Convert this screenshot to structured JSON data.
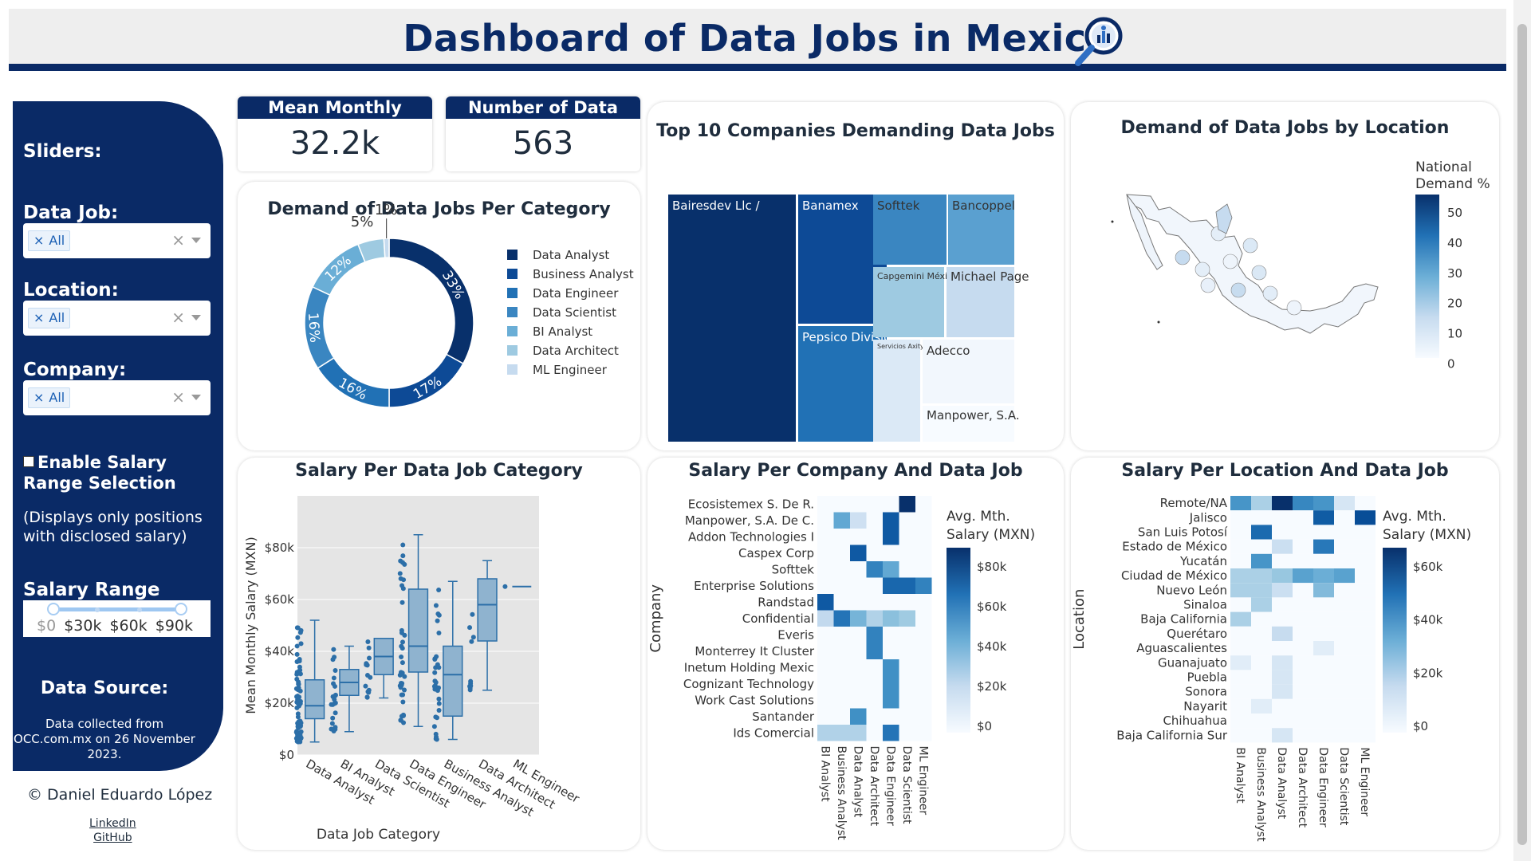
{
  "header": {
    "title": "Dashboard of Data Jobs in Mexico"
  },
  "sidebar": {
    "heading": "Sliders:",
    "filters": [
      {
        "label": "Data Job:",
        "value": "All"
      },
      {
        "label": "Location:",
        "value": "All"
      },
      {
        "label": "Company:",
        "value": "All"
      }
    ],
    "salary_checkbox": {
      "label": "Enable Salary Range Selection",
      "checked": false
    },
    "salary_note": "(Displays only positions with disclosed salary)",
    "salary_range": {
      "label": "Salary Range (MXN):",
      "marks": [
        "$0",
        "$30k",
        "$60k",
        "$90k"
      ]
    },
    "data_source": {
      "heading": "Data Source:",
      "text": "Data collected from OCC.com.mx on 26 November 2023."
    },
    "credit": "© Daniel Eduardo López",
    "links": [
      "LinkedIn",
      "GitHub"
    ]
  },
  "kpis": [
    {
      "label": "Mean Monthly Salary",
      "value": "32.2k"
    },
    {
      "label": "Number of Data Jobs",
      "value": "563"
    }
  ],
  "colors": {
    "brand": "#0a2a66",
    "header_bg": "#eeeeee"
  },
  "chart_data": [
    {
      "type": "pie",
      "title": "Demand of Data Jobs Per Category",
      "hole": true,
      "categories": [
        "Data Analyst",
        "Business Analyst",
        "Data Engineer",
        "Data Scientist",
        "BI Analyst",
        "Data Architect",
        "ML Engineer"
      ],
      "values": [
        33,
        17,
        16,
        16,
        12,
        5,
        1
      ],
      "labels": [
        "33%",
        "17%",
        "16%",
        "16%",
        "12%",
        "5%",
        "1%"
      ],
      "colors": [
        "#08306b",
        "#0d4a96",
        "#2171b5",
        "#3a86c1",
        "#6aaed6",
        "#9ecae1",
        "#c6dbef"
      ],
      "legend": "right"
    },
    {
      "type": "treemap",
      "title": "Top 10 Companies Demanding Data Jobs",
      "items": [
        {
          "label": "Bairesdev Llc /",
          "color": "#08306b"
        },
        {
          "label": "Banamex",
          "color": "#0d4a96"
        },
        {
          "label": "Pepsico Divisió",
          "color": "#2171b5"
        },
        {
          "label": "Softtek",
          "color": "#3a86c1"
        },
        {
          "label": "Bancoppel",
          "color": "#5aa0d0"
        },
        {
          "label": "Capgemini Méxi",
          "color": "#9ecae1"
        },
        {
          "label": "Michael Page",
          "color": "#c6dbef"
        },
        {
          "label": "Servicios Axity",
          "color": "#dbe9f6"
        },
        {
          "label": "Adecco",
          "color": "#f2f7fd"
        },
        {
          "label": "Manpower, S.A.",
          "color": "#f7fbff"
        }
      ]
    },
    {
      "type": "choropleth",
      "title": "Demand of Data Jobs by Location",
      "colorbar": {
        "title": [
          "National",
          "Demand %"
        ],
        "ticks": [
          "50",
          "40",
          "30",
          "20",
          "10",
          "0"
        ]
      }
    },
    {
      "type": "box",
      "title": "Salary Per Data Job Category",
      "xlabel": "Data Job Category",
      "ylabel": "Mean Monthly Salary (MXN)",
      "yticks": [
        "$0",
        "$20k",
        "$40k",
        "$60k",
        "$80k"
      ],
      "ylim": [
        0,
        100000
      ],
      "categories": [
        "Data Analyst",
        "BI Analyst",
        "Data Scientist",
        "Data Engineer",
        "Business Analyst",
        "Data Architect",
        "ML Engineer"
      ],
      "boxes": [
        {
          "min": 5000,
          "q1": 14000,
          "median": 19000,
          "q3": 29000,
          "max": 52000
        },
        {
          "min": 9000,
          "q1": 23000,
          "median": 28000,
          "q3": 33000,
          "max": 42000
        },
        {
          "min": 22000,
          "q1": 31000,
          "median": 38000,
          "q3": 45000,
          "max": 45000
        },
        {
          "min": 11000,
          "q1": 32000,
          "median": 42000,
          "q3": 64000,
          "max": 85000
        },
        {
          "min": 6000,
          "q1": 15000,
          "median": 31000,
          "q3": 42000,
          "max": 67000
        },
        {
          "min": 25000,
          "q1": 44000,
          "median": 58000,
          "q3": 68000,
          "max": 75000
        },
        {
          "min": 65000,
          "q1": 65000,
          "median": 65000,
          "q3": 65000,
          "max": 65000
        }
      ]
    },
    {
      "type": "heatmap",
      "title": "Salary Per Company And Data Job",
      "ylabel": "Company",
      "colorbar": {
        "title": [
          "Avg. Mth.",
          "Salary (MXN)"
        ],
        "ticks": [
          "$80k",
          "$60k",
          "$40k",
          "$20k",
          "$0"
        ]
      },
      "x": [
        "BI Analyst",
        "Business Analyst",
        "Data Analyst",
        "Data Architect",
        "Data Engineer",
        "Data Scientist",
        "ML Engineer"
      ],
      "y": [
        "Ecosistemex S. De R.",
        "Manpower, S.A. De C.",
        "Addon Technologies I",
        "Caspex Corp",
        "Softtek",
        "Enterprise Solutions",
        "Randstad",
        "Confidential",
        "Everis",
        "Monterrey It Cluster",
        "Inetum Holding Mexic",
        "Cognizant Technology",
        "Work Cast Solutions",
        "Santander",
        "Ids Comercial"
      ],
      "z": [
        [
          null,
          null,
          null,
          null,
          null,
          95,
          null
        ],
        [
          null,
          50,
          20,
          null,
          80,
          null,
          null
        ],
        [
          null,
          null,
          null,
          null,
          80,
          null,
          null
        ],
        [
          null,
          null,
          80,
          null,
          null,
          null,
          null
        ],
        [
          null,
          null,
          null,
          65,
          50,
          null,
          null
        ],
        [
          null,
          null,
          null,
          null,
          75,
          75,
          65
        ],
        [
          80,
          null,
          null,
          null,
          null,
          null,
          null
        ],
        [
          25,
          70,
          45,
          30,
          40,
          35,
          null
        ],
        [
          null,
          null,
          null,
          65,
          null,
          null,
          null
        ],
        [
          null,
          null,
          null,
          65,
          null,
          null,
          null
        ],
        [
          null,
          null,
          null,
          null,
          60,
          null,
          null
        ],
        [
          null,
          null,
          null,
          null,
          60,
          null,
          null
        ],
        [
          null,
          null,
          null,
          null,
          60,
          null,
          null
        ],
        [
          null,
          null,
          60,
          null,
          null,
          null,
          null
        ],
        [
          30,
          30,
          30,
          null,
          70,
          null,
          null
        ]
      ]
    },
    {
      "type": "heatmap",
      "title": "Salary Per Location And Data Job",
      "ylabel": "Location",
      "colorbar": {
        "title": [
          "Avg. Mth.",
          "Salary (MXN)"
        ],
        "ticks": [
          "$60k",
          "$40k",
          "$20k",
          "$0"
        ]
      },
      "x": [
        "BI Analyst",
        "Business Analyst",
        "Data Analyst",
        "Data Architect",
        "Data Engineer",
        "Data Scientist",
        "ML Engineer"
      ],
      "y": [
        "Remote/NA",
        "Jalisco",
        "San Luis Potosí",
        "Estado de México",
        "Yucatán",
        "Ciudad de México",
        "Nuevo León",
        "Sinaloa",
        "Baja California",
        "Querétaro",
        "Aguascalientes",
        "Guanajuato",
        "Puebla",
        "Sonora",
        "Nayarit",
        "Chihuahua",
        "Baja California Sur"
      ],
      "z": [
        [
          55,
          30,
          90,
          60,
          55,
          15,
          null
        ],
        [
          null,
          null,
          null,
          null,
          75,
          null,
          80
        ],
        [
          null,
          70,
          null,
          null,
          null,
          null,
          null
        ],
        [
          null,
          null,
          20,
          null,
          65,
          null,
          null
        ],
        [
          null,
          55,
          null,
          null,
          null,
          null,
          null
        ],
        [
          30,
          30,
          35,
          50,
          45,
          50,
          null
        ],
        [
          30,
          30,
          20,
          null,
          40,
          null,
          null
        ],
        [
          null,
          30,
          null,
          null,
          null,
          null,
          null
        ],
        [
          30,
          null,
          null,
          null,
          null,
          null,
          null
        ],
        [
          null,
          null,
          22,
          null,
          null,
          null,
          null
        ],
        [
          null,
          null,
          null,
          null,
          10,
          null,
          null
        ],
        [
          10,
          null,
          15,
          null,
          null,
          null,
          null
        ],
        [
          null,
          null,
          15,
          null,
          null,
          null,
          null
        ],
        [
          null,
          null,
          15,
          null,
          null,
          null,
          null
        ],
        [
          null,
          10,
          null,
          null,
          null,
          null,
          null
        ],
        [
          null,
          null,
          null,
          null,
          null,
          null,
          null
        ],
        [
          null,
          null,
          15,
          null,
          null,
          null,
          null
        ]
      ]
    }
  ]
}
